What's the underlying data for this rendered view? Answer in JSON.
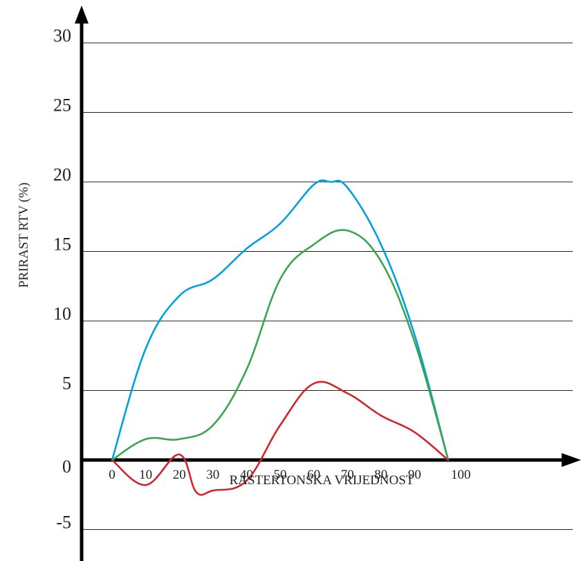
{
  "chart_data": {
    "type": "line",
    "title": "",
    "xlabel": "RASTERTONSKA VRIJEDNOST",
    "ylabel": "PRIRAST RTV (%)",
    "ylim": [
      -5,
      30
    ],
    "y_ticks": [
      "30",
      "25",
      "20",
      "15",
      "10",
      "5",
      "0",
      "-5"
    ],
    "x_ticks": [
      "0",
      "10",
      "20",
      "30",
      "40",
      "50",
      "60",
      "70",
      "80",
      "90",
      "100"
    ],
    "grid": true,
    "series": [
      {
        "color": "#00a0e0",
        "points": [
          [
            0,
            0
          ],
          [
            10,
            8
          ],
          [
            20,
            11.8
          ],
          [
            30,
            13
          ],
          [
            40,
            15.2
          ],
          [
            50,
            17
          ],
          [
            60,
            19.8
          ],
          [
            65,
            20
          ],
          [
            70,
            19.6
          ],
          [
            80,
            15.5
          ],
          [
            90,
            9
          ],
          [
            100,
            0
          ]
        ]
      },
      {
        "color": "#3aa64b",
        "points": [
          [
            0,
            0
          ],
          [
            10,
            1.5
          ],
          [
            20,
            1.5
          ],
          [
            30,
            2.5
          ],
          [
            40,
            6.5
          ],
          [
            50,
            13
          ],
          [
            60,
            15.5
          ],
          [
            70,
            16.5
          ],
          [
            80,
            14.3
          ],
          [
            90,
            8.5
          ],
          [
            100,
            0
          ]
        ]
      },
      {
        "color": "#d2232a",
        "points": [
          [
            0,
            0
          ],
          [
            10,
            -1.8
          ],
          [
            20,
            0.4
          ],
          [
            25,
            -2.3
          ],
          [
            30,
            -2.2
          ],
          [
            40,
            -1.5
          ],
          [
            50,
            2.5
          ],
          [
            60,
            5.5
          ],
          [
            70,
            4.8
          ],
          [
            80,
            3.2
          ],
          [
            90,
            2
          ],
          [
            100,
            0
          ]
        ]
      }
    ]
  }
}
